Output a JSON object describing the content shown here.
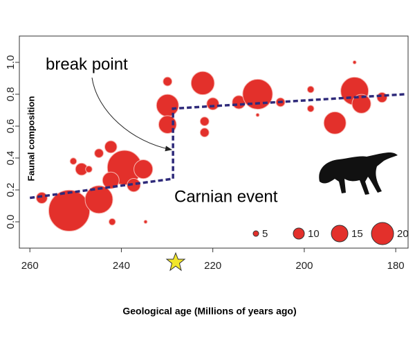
{
  "chart_data": {
    "type": "bubble",
    "x_label": "Geological age (Millions of years ago)",
    "y_label": "Faunal composition",
    "annotations": [
      "break point",
      "Carnian event"
    ],
    "xlim": [
      262.3,
      177.3
    ],
    "xticks": [
      260,
      240,
      220,
      200,
      180
    ],
    "ylim": [
      -0.165,
      1.165
    ],
    "yticks": [
      {
        "value": 0,
        "label": "0.0"
      },
      0.2,
      0.4,
      0.6,
      0.8,
      {
        "value": 1,
        "label": "1.0"
      }
    ],
    "color": "#e3302b",
    "x": [
      251.4,
      244.9,
      239.3,
      235.2,
      242.3,
      237.3,
      242.3,
      244.9,
      248.7,
      250.5,
      247.1,
      242,
      234.7,
      257.4,
      229.9,
      229.9,
      229.9,
      222.2,
      220,
      221.8,
      221.8,
      214.3,
      210.2,
      205.2,
      198.6,
      198.6,
      193.3,
      189,
      187.5,
      183,
      189,
      210.2
    ],
    "y": [
      0.07,
      0.14,
      0.34,
      0.33,
      0.26,
      0.23,
      0.47,
      0.43,
      0.33,
      0.38,
      0.33,
      0.0,
      0.0,
      0.15,
      0.73,
      0.61,
      0.88,
      0.87,
      0.74,
      0.63,
      0.56,
      0.75,
      0.8,
      0.75,
      0.83,
      0.71,
      0.62,
      0.82,
      0.74,
      0.78,
      1.0,
      0.67
    ],
    "sizes": [
      37,
      25,
      31,
      17,
      15,
      12,
      11,
      8,
      11,
      6,
      6,
      6,
      3,
      10,
      20,
      16,
      8,
      21,
      11,
      8,
      8,
      12,
      27,
      8,
      6,
      6,
      20,
      25,
      17,
      9,
      3,
      3
    ],
    "size_legend": [
      5,
      10,
      15,
      20
    ],
    "fit_line": {
      "color": "#2e2a7a",
      "x": [
        260,
        228.7,
        228.7,
        178
      ],
      "y": [
        0.15,
        0.27,
        0.71,
        0.8
      ]
    }
  }
}
